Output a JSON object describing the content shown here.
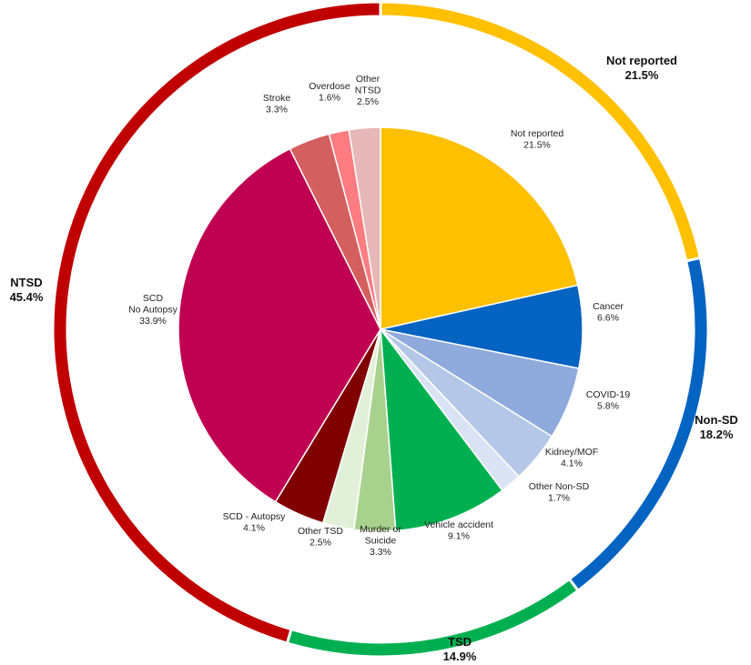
{
  "chart_data": {
    "type": "pie",
    "inner": [
      {
        "label": [
          "Not reported"
        ],
        "value": 21.5,
        "value_label": "21.5%",
        "color": "#FFC000"
      },
      {
        "label": [
          "Cancer"
        ],
        "value": 6.6,
        "value_label": "6.6%",
        "color": "#0563C1"
      },
      {
        "label": [
          "COVID-19"
        ],
        "value": 5.8,
        "value_label": "5.8%",
        "color": "#8FAADC"
      },
      {
        "label": [
          "Kidney/MOF"
        ],
        "value": 4.1,
        "value_label": "4.1%",
        "color": "#B4C7E7"
      },
      {
        "label": [
          "Other Non-SD"
        ],
        "value": 1.7,
        "value_label": "1.7%",
        "color": "#DAE3F3"
      },
      {
        "label": [
          "Vehicle accident"
        ],
        "value": 9.1,
        "value_label": "9.1%",
        "color": "#00B050"
      },
      {
        "label": [
          "Murder or",
          "Suicide"
        ],
        "value": 3.3,
        "value_label": "3.3%",
        "color": "#A9D18E"
      },
      {
        "label": [
          "Other TSD"
        ],
        "value": 2.5,
        "value_label": "2.5%",
        "color": "#E2F0D9"
      },
      {
        "label": [
          "SCD - Autopsy"
        ],
        "value": 4.1,
        "value_label": "4.1%",
        "color": "#800000"
      },
      {
        "label": [
          "SCD",
          "No Autopsy"
        ],
        "value": 33.9,
        "value_label": "33.9%",
        "color": "#C00050"
      },
      {
        "label": [
          "Stroke"
        ],
        "value": 3.3,
        "value_label": "3.3%",
        "color": "#D45F5F"
      },
      {
        "label": [
          "Overdose"
        ],
        "value": 1.6,
        "value_label": "1.6%",
        "color": "#FF7C80"
      },
      {
        "label": [
          "Other",
          "NTSD"
        ],
        "value": 2.5,
        "value_label": "2.5%",
        "color": "#E6B8B7"
      }
    ],
    "outer": [
      {
        "label": "Not reported",
        "value": 21.5,
        "value_label": "21.5%",
        "color": "#FFC000"
      },
      {
        "label": "Non-SD",
        "value": 18.2,
        "value_label": "18.2%",
        "color": "#0563C1"
      },
      {
        "label": "TSD",
        "value": 14.9,
        "value_label": "14.9%",
        "color": "#00B050"
      },
      {
        "label": "NTSD",
        "value": 45.4,
        "value_label": "45.4%",
        "color": "#C00000"
      }
    ]
  }
}
